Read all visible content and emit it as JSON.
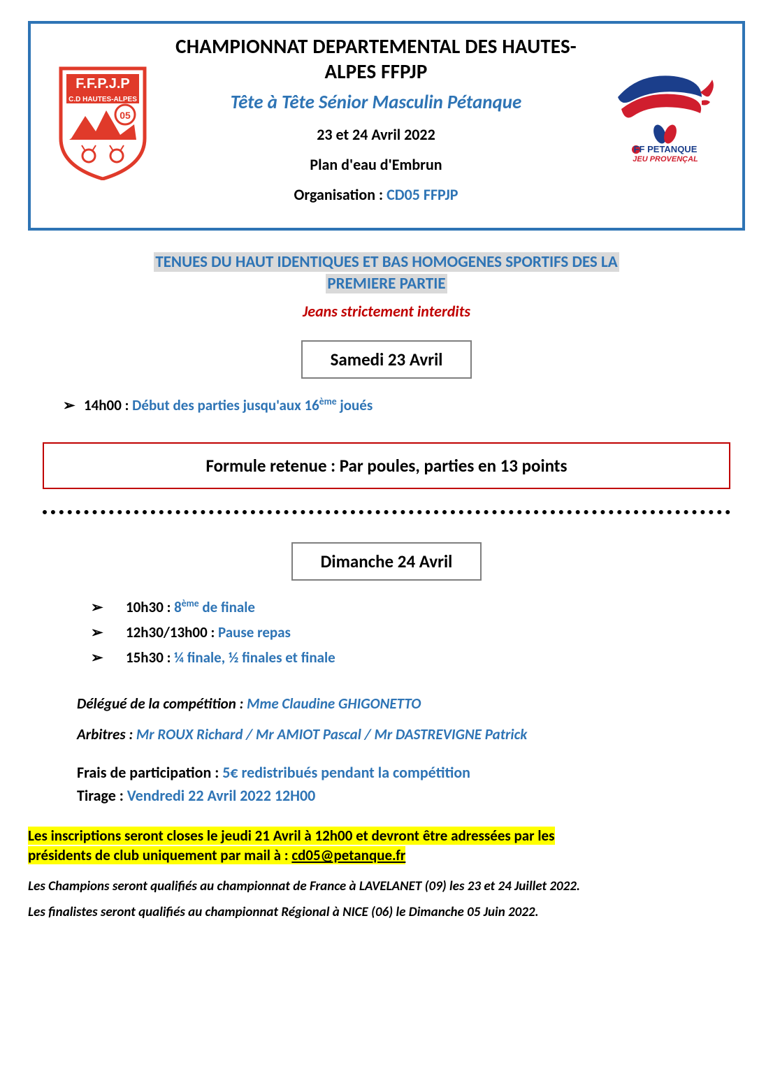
{
  "colors": {
    "accent_blue": "#2e74b5",
    "accent_red": "#c00000",
    "highlight": "#ffff00",
    "grey_bg": "#d9d9d9",
    "border_grey": "#7f7f7f",
    "text_black": "#000000"
  },
  "header": {
    "title": "CHAMPIONNAT DEPARTEMENTAL DES HAUTES-ALPES FFPJP",
    "subtitle": "Tête à Tête Sénior Masculin Pétanque",
    "dates": "23 et 24 Avril 2022",
    "venue": "Plan d'eau d'Embrun",
    "org_label": "Organisation : ",
    "org_value": "CD05 FFPJP",
    "logo_left": {
      "text_top": "F.F.P.J.P",
      "text_mid": "C.D HAUTES-ALPES",
      "badge": "05"
    },
    "logo_right": {
      "line1": "FF PETANQUE",
      "line2": "JEU PROVENÇAL"
    }
  },
  "dress": {
    "line1": "TENUES DU HAUT IDENTIQUES ET BAS HOMOGENES SPORTIFS DES LA",
    "line2": "PREMIERE PARTIE",
    "jeans": "Jeans strictement interdits"
  },
  "saturday": {
    "heading": "Samedi 23 Avril",
    "item_time": "14h00 : ",
    "item_text_a": "Début des parties jusqu'aux 16",
    "item_sup": "ème",
    "item_text_b": " joués"
  },
  "formula": "Formule retenue :  Par poules, parties en 13 points",
  "sunday": {
    "heading": "Dimanche 24 Avril",
    "items": [
      {
        "time": "10h30 : ",
        "text_a": "8",
        "sup": "ème",
        "text_b": " de finale"
      },
      {
        "time": "12h30/13h00 : ",
        "text_a": "Pause repas",
        "sup": "",
        "text_b": ""
      },
      {
        "time": "15h30 : ",
        "text_a": "¼ finale, ½ finales et finale",
        "sup": "",
        "text_b": ""
      }
    ]
  },
  "officials": {
    "delegate_label": "Délégué de la compétition : ",
    "delegate_value": "Mme Claudine GHIGONETTO",
    "referee_label": "Arbitres : ",
    "referee_value": "Mr ROUX Richard / Mr AMIOT Pascal / Mr DASTREVIGNE Patrick"
  },
  "fees": {
    "fee_label": "Frais de participation : ",
    "fee_value": "5€ redistribués pendant la compétition",
    "draw_label": "Tirage : ",
    "draw_value": "Vendredi 22 Avril 2022 12H00"
  },
  "registration": {
    "text_a": "Les inscriptions seront closes le jeudi 21 Avril à 12h00 et devront être adressées par les",
    "text_b": "présidents de club uniquement par mail à : ",
    "email": "cd05@petanque.fr"
  },
  "footnotes": {
    "line1": "Les Champions seront qualifiés au championnat de France à LAVELANET (09) les 23 et 24 Juillet 2022.",
    "line2": "Les finalistes seront qualifiés au championnat Régional à NICE (06) le Dimanche 05 Juin 2022."
  }
}
